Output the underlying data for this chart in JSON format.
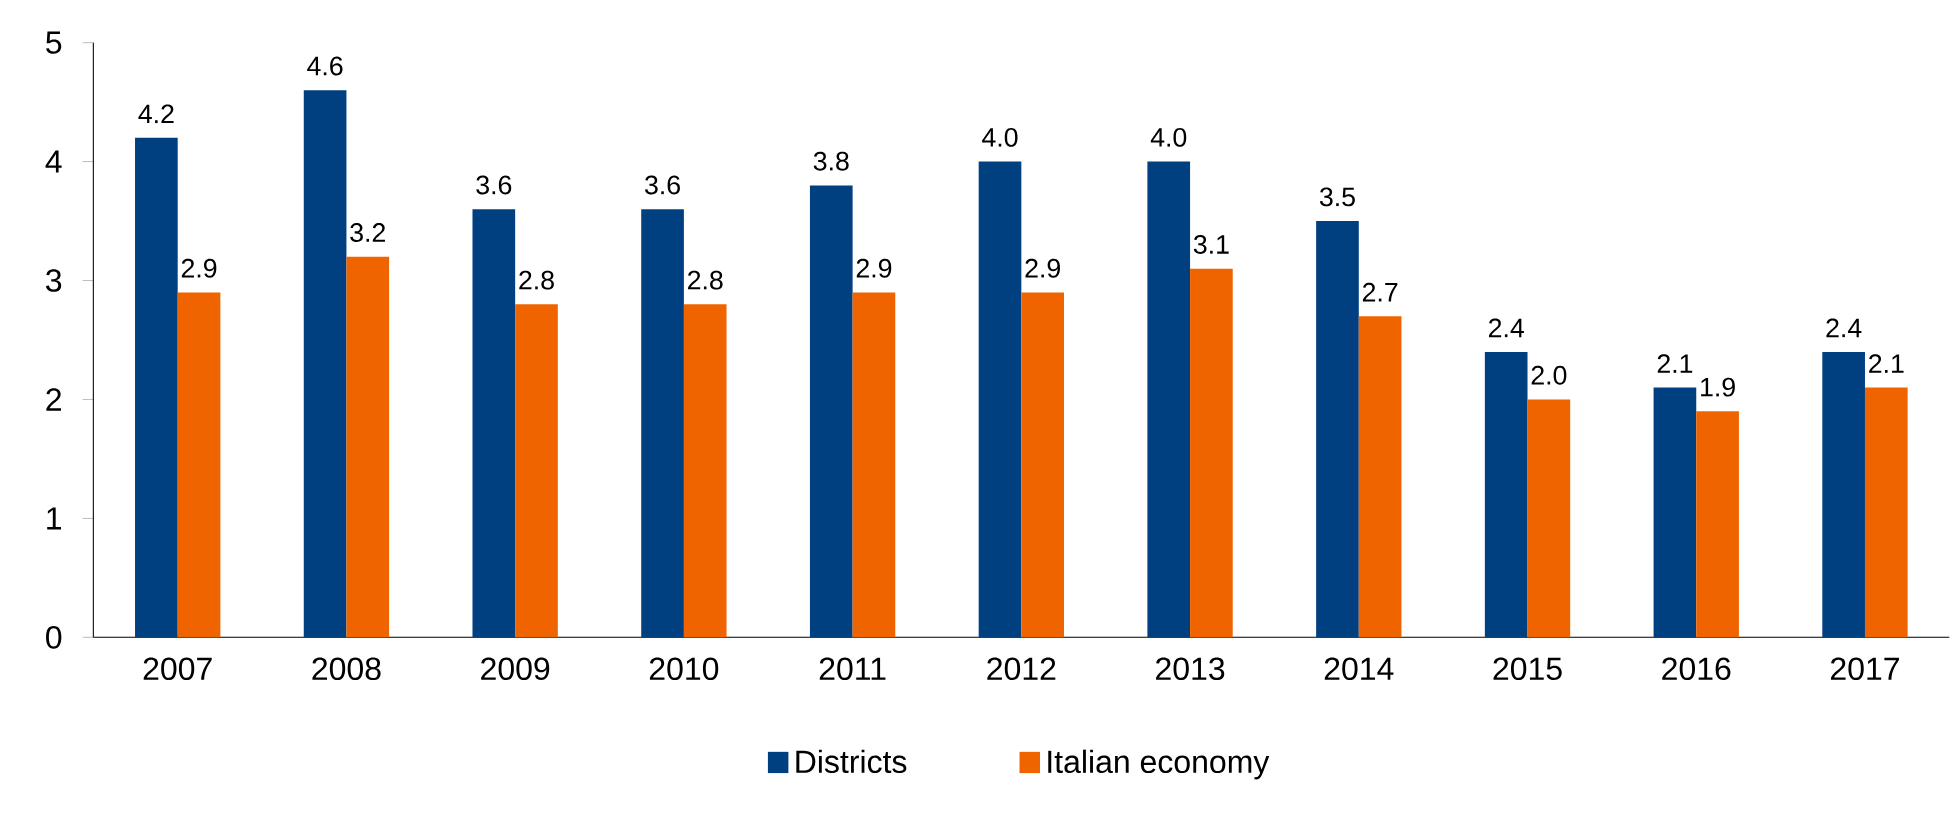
{
  "chart_data": {
    "type": "bar",
    "categories": [
      "2007",
      "2008",
      "2009",
      "2010",
      "2011",
      "2012",
      "2013",
      "2014",
      "2015",
      "2016",
      "2017"
    ],
    "series": [
      {
        "name": "Districts",
        "color": "#003f80",
        "values": [
          4.2,
          4.6,
          3.6,
          3.6,
          3.8,
          4.0,
          4.0,
          3.5,
          2.4,
          2.1,
          2.4
        ],
        "value_labels": [
          "4.2",
          "4.6",
          "3.6",
          "3.6",
          "3.8",
          "4.0",
          "4.0",
          "3.5",
          "2.4",
          "2.1",
          "2.4"
        ]
      },
      {
        "name": "Italian economy",
        "color": "#f06400",
        "values": [
          2.9,
          3.2,
          2.8,
          2.8,
          2.9,
          2.9,
          3.1,
          2.7,
          2.0,
          1.9,
          2.1
        ],
        "value_labels": [
          "2.9",
          "3.2",
          "2.8",
          "2.8",
          "2.9",
          "2.9",
          "3.1",
          "2.7",
          "2.0",
          "1.9",
          "2.1"
        ]
      }
    ],
    "ylim": [
      0,
      5
    ],
    "yticks": [
      0,
      1,
      2,
      3,
      4,
      5
    ],
    "grid": false,
    "legend": "bottom"
  }
}
